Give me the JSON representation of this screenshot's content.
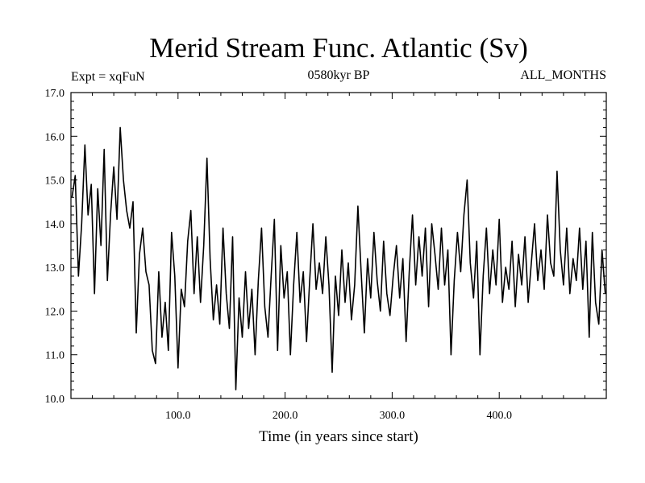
{
  "chart_data": {
    "type": "line",
    "title": "Merid Stream Func. Atlantic (Sv)",
    "subtitle_left": "Expt = xqFuN",
    "subtitle_center": "0580kyr BP",
    "subtitle_right": "ALL_MONTHS",
    "xlabel": "Time (in years since start)",
    "ylabel": "",
    "xlim": [
      0,
      500
    ],
    "ylim": [
      10.0,
      17.0
    ],
    "x_ticks": [
      100,
      200,
      300,
      400
    ],
    "x_tick_labels": [
      "100.0",
      "200.0",
      "300.0",
      "400.0"
    ],
    "y_ticks": [
      10,
      11,
      12,
      13,
      14,
      15,
      16,
      17
    ],
    "y_tick_labels": [
      "10.0",
      "11.0",
      "12.0",
      "13.0",
      "14.0",
      "15.0",
      "16.0",
      "17.0"
    ],
    "grid": false,
    "series": [
      {
        "name": "Merid Stream Func. Atlantic",
        "color": "#000000",
        "points": [
          [
            1,
            14.6
          ],
          [
            4,
            15.1
          ],
          [
            7,
            12.8
          ],
          [
            10,
            14.0
          ],
          [
            13,
            15.8
          ],
          [
            16,
            14.2
          ],
          [
            19,
            14.9
          ],
          [
            22,
            12.4
          ],
          [
            25,
            14.8
          ],
          [
            28,
            13.5
          ],
          [
            31,
            15.7
          ],
          [
            34,
            12.7
          ],
          [
            37,
            14.2
          ],
          [
            40,
            15.3
          ],
          [
            43,
            14.1
          ],
          [
            46,
            16.2
          ],
          [
            49,
            15.0
          ],
          [
            52,
            14.3
          ],
          [
            55,
            13.9
          ],
          [
            58,
            14.5
          ],
          [
            61,
            11.5
          ],
          [
            64,
            13.3
          ],
          [
            67,
            13.9
          ],
          [
            70,
            12.9
          ],
          [
            73,
            12.6
          ],
          [
            76,
            11.1
          ],
          [
            79,
            10.8
          ],
          [
            82,
            12.9
          ],
          [
            85,
            11.4
          ],
          [
            88,
            12.2
          ],
          [
            91,
            11.1
          ],
          [
            94,
            13.8
          ],
          [
            97,
            12.8
          ],
          [
            100,
            10.7
          ],
          [
            103,
            12.5
          ],
          [
            106,
            12.1
          ],
          [
            109,
            13.6
          ],
          [
            112,
            14.3
          ],
          [
            115,
            12.4
          ],
          [
            118,
            13.7
          ],
          [
            121,
            12.2
          ],
          [
            124,
            13.5
          ],
          [
            127,
            15.5
          ],
          [
            130,
            13.2
          ],
          [
            133,
            11.8
          ],
          [
            136,
            12.6
          ],
          [
            139,
            11.7
          ],
          [
            142,
            13.9
          ],
          [
            145,
            12.4
          ],
          [
            148,
            11.6
          ],
          [
            151,
            13.7
          ],
          [
            154,
            10.2
          ],
          [
            157,
            12.3
          ],
          [
            160,
            11.4
          ],
          [
            163,
            12.9
          ],
          [
            166,
            11.6
          ],
          [
            169,
            12.5
          ],
          [
            172,
            11.0
          ],
          [
            175,
            12.7
          ],
          [
            178,
            13.9
          ],
          [
            181,
            12.1
          ],
          [
            184,
            11.4
          ],
          [
            187,
            12.8
          ],
          [
            190,
            14.1
          ],
          [
            193,
            11.1
          ],
          [
            196,
            13.5
          ],
          [
            199,
            12.3
          ],
          [
            202,
            12.9
          ],
          [
            205,
            11.0
          ],
          [
            208,
            12.6
          ],
          [
            211,
            13.8
          ],
          [
            214,
            12.2
          ],
          [
            217,
            12.9
          ],
          [
            220,
            11.3
          ],
          [
            223,
            12.7
          ],
          [
            226,
            14.0
          ],
          [
            229,
            12.5
          ],
          [
            232,
            13.1
          ],
          [
            235,
            12.4
          ],
          [
            238,
            13.7
          ],
          [
            241,
            12.6
          ],
          [
            244,
            10.6
          ],
          [
            247,
            12.8
          ],
          [
            250,
            11.9
          ],
          [
            253,
            13.4
          ],
          [
            256,
            12.2
          ],
          [
            259,
            13.1
          ],
          [
            262,
            11.8
          ],
          [
            265,
            12.6
          ],
          [
            268,
            14.4
          ],
          [
            271,
            12.9
          ],
          [
            274,
            11.5
          ],
          [
            277,
            13.2
          ],
          [
            280,
            12.3
          ],
          [
            283,
            13.8
          ],
          [
            286,
            12.7
          ],
          [
            289,
            12.0
          ],
          [
            292,
            13.6
          ],
          [
            295,
            12.4
          ],
          [
            298,
            11.9
          ],
          [
            301,
            12.8
          ],
          [
            304,
            13.5
          ],
          [
            307,
            12.3
          ],
          [
            310,
            13.2
          ],
          [
            313,
            11.3
          ],
          [
            316,
            12.9
          ],
          [
            319,
            14.2
          ],
          [
            322,
            12.6
          ],
          [
            325,
            13.7
          ],
          [
            328,
            12.8
          ],
          [
            331,
            13.9
          ],
          [
            334,
            12.1
          ],
          [
            337,
            14.0
          ],
          [
            340,
            13.3
          ],
          [
            343,
            12.5
          ],
          [
            346,
            13.9
          ],
          [
            349,
            12.6
          ],
          [
            352,
            13.4
          ],
          [
            355,
            11.0
          ],
          [
            358,
            12.7
          ],
          [
            361,
            13.8
          ],
          [
            364,
            12.9
          ],
          [
            367,
            14.2
          ],
          [
            370,
            15.0
          ],
          [
            373,
            13.1
          ],
          [
            376,
            12.3
          ],
          [
            379,
            13.6
          ],
          [
            382,
            11.0
          ],
          [
            385,
            12.8
          ],
          [
            388,
            13.9
          ],
          [
            391,
            12.4
          ],
          [
            394,
            13.4
          ],
          [
            397,
            12.6
          ],
          [
            400,
            14.1
          ],
          [
            403,
            12.2
          ],
          [
            406,
            13.0
          ],
          [
            409,
            12.5
          ],
          [
            412,
            13.6
          ],
          [
            415,
            12.1
          ],
          [
            418,
            13.3
          ],
          [
            421,
            12.6
          ],
          [
            424,
            13.7
          ],
          [
            427,
            12.2
          ],
          [
            430,
            13.1
          ],
          [
            433,
            14.0
          ],
          [
            436,
            12.7
          ],
          [
            439,
            13.4
          ],
          [
            442,
            12.5
          ],
          [
            445,
            14.2
          ],
          [
            448,
            13.1
          ],
          [
            451,
            12.8
          ],
          [
            454,
            15.2
          ],
          [
            457,
            13.4
          ],
          [
            460,
            12.6
          ],
          [
            463,
            13.9
          ],
          [
            466,
            12.4
          ],
          [
            469,
            13.2
          ],
          [
            472,
            12.7
          ],
          [
            475,
            13.9
          ],
          [
            478,
            12.5
          ],
          [
            481,
            13.6
          ],
          [
            484,
            11.4
          ],
          [
            487,
            13.8
          ],
          [
            490,
            12.2
          ],
          [
            493,
            11.7
          ],
          [
            496,
            13.4
          ],
          [
            499,
            12.4
          ]
        ]
      }
    ]
  }
}
